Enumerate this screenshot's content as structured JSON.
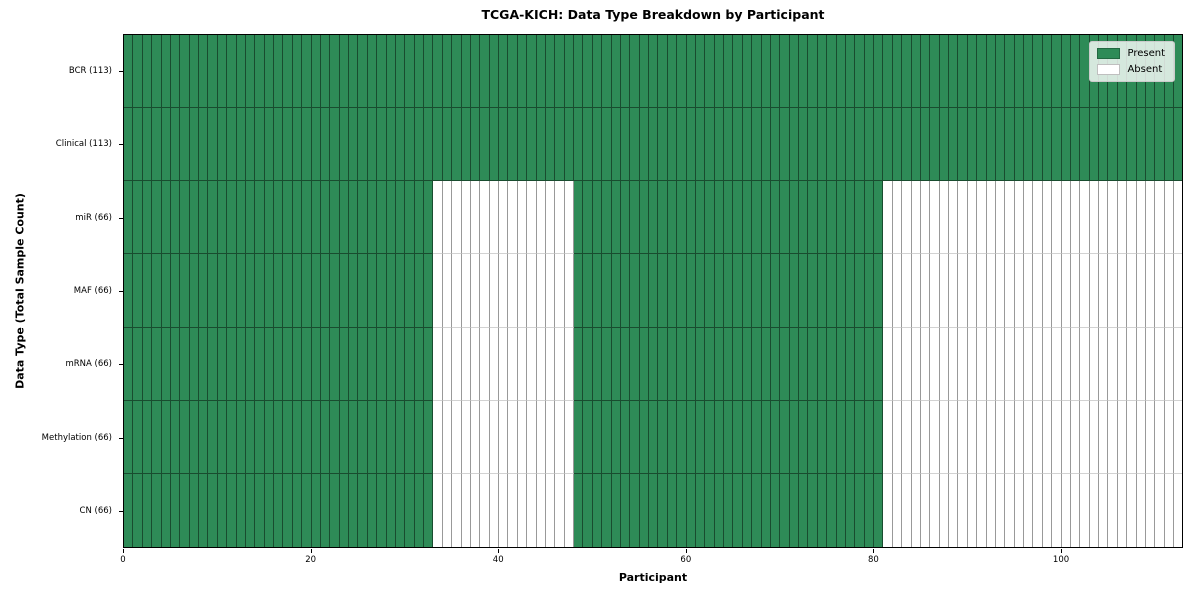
{
  "chart_data": {
    "type": "heatmap",
    "title": "TCGA-KICH: Data Type Breakdown by Participant",
    "xlabel": "Participant",
    "ylabel": "Data Type (Total Sample Count)",
    "n_participants": 113,
    "xlim": [
      0,
      113
    ],
    "x_ticks": [
      0,
      20,
      40,
      60,
      80,
      100
    ],
    "grid": false,
    "legend_position": "upper right",
    "colors": {
      "present": "#2e8b57",
      "absent": "#ffffff"
    },
    "legend": [
      {
        "label": "Present",
        "state": "present"
      },
      {
        "label": "Absent",
        "state": "absent"
      }
    ],
    "rows": [
      {
        "label": "BCR (113)",
        "data_type": "BCR",
        "present_count": 113,
        "present_ranges": [
          [
            0,
            113
          ]
        ]
      },
      {
        "label": "Clinical (113)",
        "data_type": "Clinical",
        "present_count": 113,
        "present_ranges": [
          [
            0,
            113
          ]
        ]
      },
      {
        "label": "miR (66)",
        "data_type": "miR",
        "present_count": 66,
        "present_ranges": [
          [
            0,
            33
          ],
          [
            48,
            81
          ]
        ]
      },
      {
        "label": "MAF (66)",
        "data_type": "MAF",
        "present_count": 66,
        "present_ranges": [
          [
            0,
            33
          ],
          [
            48,
            81
          ]
        ]
      },
      {
        "label": "mRNA (66)",
        "data_type": "mRNA",
        "present_count": 66,
        "present_ranges": [
          [
            0,
            33
          ],
          [
            48,
            81
          ]
        ]
      },
      {
        "label": "Methylation (66)",
        "data_type": "Methylation",
        "present_count": 66,
        "present_ranges": [
          [
            0,
            33
          ],
          [
            48,
            81
          ]
        ]
      },
      {
        "label": "CN (66)",
        "data_type": "CN",
        "present_count": 66,
        "present_ranges": [
          [
            0,
            33
          ],
          [
            48,
            81
          ]
        ]
      }
    ]
  }
}
